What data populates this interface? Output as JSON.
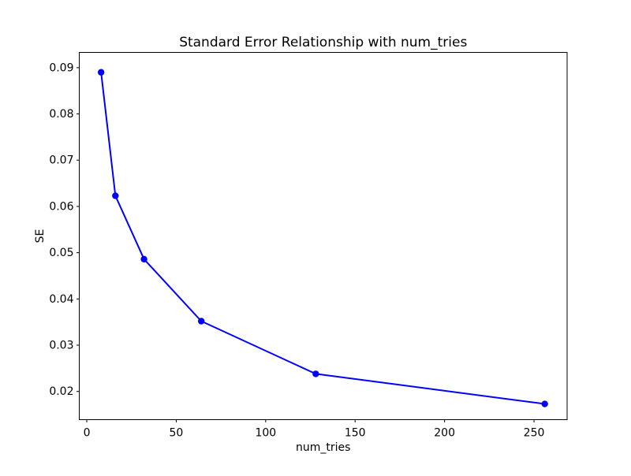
{
  "chart_data": {
    "type": "line",
    "title": "Standard Error Relationship with num_tries",
    "xlabel": "num_tries",
    "ylabel": "SE",
    "x": [
      8,
      16,
      32,
      64,
      128,
      256
    ],
    "y": [
      0.089,
      0.0623,
      0.0486,
      0.0352,
      0.0238,
      0.0173
    ],
    "marker": "o",
    "line_color": "#0000ff",
    "axes_color": "#000000",
    "background_color": "#ffffff",
    "grid": false,
    "legend_position": "none",
    "xlim": [
      -4.2,
      268.5
    ],
    "ylim": [
      0.0139,
      0.0933
    ],
    "xticks": [
      0,
      50,
      100,
      150,
      200,
      250
    ],
    "xtick_labels": [
      "0",
      "50",
      "100",
      "150",
      "200",
      "250"
    ],
    "yticks": [
      0.02,
      0.03,
      0.04,
      0.05,
      0.06,
      0.07,
      0.08,
      0.09
    ],
    "ytick_labels": [
      "0.02",
      "0.03",
      "0.04",
      "0.05",
      "0.06",
      "0.07",
      "0.08",
      "0.09"
    ]
  }
}
